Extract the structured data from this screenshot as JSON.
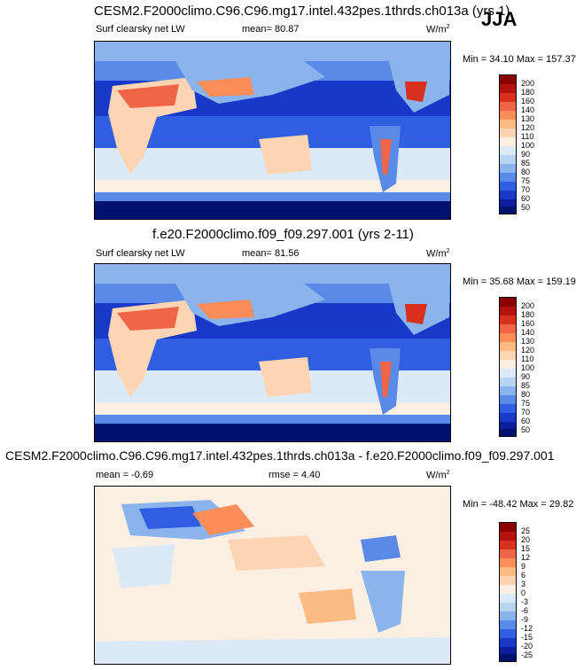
{
  "season": "JJA",
  "panels": [
    {
      "id": "top",
      "title": "CESM2.F2000climo.C96.C96.mg17.intel.432pes.1thrds.ch013a (yrs 1)",
      "var_label": "Surf clearsky net LW",
      "stat_text": "mean=  80.87",
      "units": "W/m",
      "units_exp": "2",
      "minmax": "Min =  34.10 Max = 157.37",
      "colorbar_levels": [
        "200",
        "180",
        "160",
        "140",
        "130",
        "120",
        "110",
        "100",
        "90",
        "85",
        "80",
        "75",
        "70",
        "60",
        "50"
      ],
      "colors": [
        "#8b0000",
        "#b3120f",
        "#d7301f",
        "#ef6548",
        "#fc8d59",
        "#fdbb84",
        "#fdd5b4",
        "#fbeee3",
        "#dce9f7",
        "#b8d4f3",
        "#8bb4ec",
        "#5a8ae8",
        "#2f5fe0",
        "#1838c8",
        "#0a1f9e",
        "#00116e"
      ]
    },
    {
      "id": "middle",
      "title": "f.e20.F2000climo.f09_f09.297.001 (yrs 2-11)",
      "var_label": "Surf clearsky net LW",
      "stat_text": "mean=  81.56",
      "units": "W/m",
      "units_exp": "2",
      "minmax": "Min =  35.68 Max = 159.19",
      "colorbar_levels": [
        "200",
        "180",
        "160",
        "140",
        "130",
        "120",
        "110",
        "100",
        "90",
        "85",
        "80",
        "75",
        "70",
        "60",
        "50"
      ],
      "colors": [
        "#8b0000",
        "#b3120f",
        "#d7301f",
        "#ef6548",
        "#fc8d59",
        "#fdbb84",
        "#fdd5b4",
        "#fbeee3",
        "#dce9f7",
        "#b8d4f3",
        "#8bb4ec",
        "#5a8ae8",
        "#2f5fe0",
        "#1838c8",
        "#0a1f9e",
        "#00116e"
      ]
    },
    {
      "id": "bottom",
      "title": "CESM2.F2000climo.C96.C96.mg17.intel.432pes.1thrds.ch013a - f.e20.F2000climo.f09_f09.297.001",
      "stat_left": "mean =  -0.69",
      "stat_mid": "rmse =   4.40",
      "units": "W/m",
      "units_exp": "2",
      "minmax": "Min = -48.42 Max =  29.82",
      "colorbar_levels": [
        "25",
        "20",
        "15",
        "12",
        "9",
        "6",
        "3",
        "0",
        "-3",
        "-6",
        "-9",
        "-12",
        "-15",
        "-20",
        "-25"
      ],
      "colors": [
        "#8b0000",
        "#b3120f",
        "#d7301f",
        "#ef6548",
        "#fc8d59",
        "#fdbb84",
        "#fdd5b4",
        "#fbeee3",
        "#dce9f7",
        "#b8d4f3",
        "#8bb4ec",
        "#5a8ae8",
        "#2f5fe0",
        "#1838c8",
        "#0a1f9e",
        "#00116e"
      ]
    }
  ],
  "chart_data": [
    {
      "type": "heatmap",
      "title": "CESM2.F2000climo.C96.C96.mg17.intel.432pes.1thrds.ch013a (yrs 1)",
      "variable": "Surf clearsky net LW",
      "mean": 80.87,
      "min": 34.1,
      "max": 157.37,
      "units": "W/m2",
      "levels": [
        50,
        60,
        70,
        75,
        80,
        85,
        90,
        100,
        110,
        120,
        130,
        140,
        160,
        180,
        200
      ]
    },
    {
      "type": "heatmap",
      "title": "f.e20.F2000climo.f09_f09.297.001 (yrs 2-11)",
      "variable": "Surf clearsky net LW",
      "mean": 81.56,
      "min": 35.68,
      "max": 159.19,
      "units": "W/m2",
      "levels": [
        50,
        60,
        70,
        75,
        80,
        85,
        90,
        100,
        110,
        120,
        130,
        140,
        160,
        180,
        200
      ]
    },
    {
      "type": "heatmap",
      "title": "CESM2.F2000climo.C96.C96.mg17.intel.432pes.1thrds.ch013a - f.e20.F2000climo.f09_f09.297.001",
      "mean": -0.69,
      "rmse": 4.4,
      "min": -48.42,
      "max": 29.82,
      "units": "W/m2",
      "levels": [
        -25,
        -20,
        -15,
        -12,
        -9,
        -6,
        -3,
        0,
        3,
        6,
        9,
        12,
        15,
        20,
        25
      ]
    }
  ]
}
